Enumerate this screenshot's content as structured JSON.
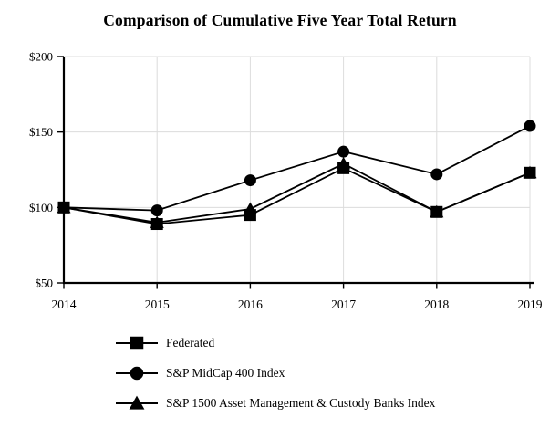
{
  "title": "Comparison of Cumulative Five Year Total Return",
  "colors": {
    "line": "#000000",
    "grid": "#dcdcdc",
    "background": "#ffffff",
    "text": "#000000"
  },
  "chart_data": {
    "type": "line",
    "title": "Comparison of Cumulative Five Year Total Return",
    "xlabel": "",
    "ylabel": "",
    "categories": [
      "2014",
      "2015",
      "2016",
      "2017",
      "2018",
      "2019"
    ],
    "series": [
      {
        "name": "Federated",
        "marker": "square",
        "values": [
          100,
          89,
          95,
          126,
          97,
          123
        ]
      },
      {
        "name": "S&P MidCap 400 Index",
        "marker": "circle",
        "values": [
          100,
          98,
          118,
          137,
          122,
          154
        ]
      },
      {
        "name": "S&P 1500 Asset Management & Custody Banks Index",
        "marker": "triangle",
        "values": [
          100,
          90,
          99,
          129,
          97,
          123
        ]
      }
    ],
    "ylim": [
      50,
      200
    ],
    "y_ticks": [
      50,
      100,
      150,
      200
    ],
    "y_tick_labels": [
      "$50",
      "$100",
      "$150",
      "$200"
    ],
    "grid": true,
    "legend_position": "bottom-left",
    "currency_prefix": "$"
  }
}
